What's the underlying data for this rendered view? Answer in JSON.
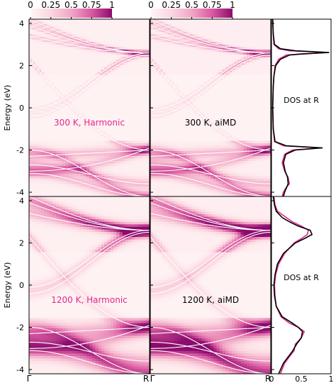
{
  "chart_data": {
    "type": "heatmap",
    "colormap": {
      "ticks": [
        "0",
        "0.25",
        "0.5",
        "0.75",
        "1"
      ],
      "colors": [
        "#fff5f5",
        "#fbd6e0",
        "#f2a6c6",
        "#d95aa0",
        "#8c0b6e"
      ],
      "range": [
        0,
        1
      ]
    },
    "energy_axis": {
      "label": "Energy (eV)",
      "range": [
        -4.2,
        4.2
      ],
      "ticks": [
        -4,
        -2,
        0,
        2,
        4
      ]
    },
    "k_path_labels": [
      "Γ",
      "R"
    ],
    "dos_axis": {
      "range": [
        0,
        1
      ],
      "ticks": [
        "0",
        "0.5",
        "1"
      ]
    },
    "bands": [
      {
        "gamma": 2.3,
        "r": -2.0,
        "shape": "dip"
      },
      {
        "gamma": 3.4,
        "r": 2.6,
        "shape": "dip"
      },
      {
        "gamma": 3.9,
        "r": 2.6,
        "shape": "dip"
      },
      {
        "gamma": 4.2,
        "r": 2.6,
        "shape": "dip"
      },
      {
        "gamma": -0.4,
        "r": 2.5,
        "shape": "cos"
      },
      {
        "gamma": -0.1,
        "r": 2.6,
        "shape": "cos"
      },
      {
        "gamma": -2.3,
        "r": -2.0,
        "shape": "flat"
      },
      {
        "gamma": -2.7,
        "r": -3.6,
        "shape": "cos"
      },
      {
        "gamma": -3.0,
        "r": -1.9,
        "shape": "sag"
      },
      {
        "gamma": -3.1,
        "r": -4.2,
        "shape": "cos"
      },
      {
        "gamma": -2.0,
        "r": -4.2,
        "shape": "cos"
      }
    ],
    "panels": [
      {
        "label": "300 K, Harmonic",
        "label_color": "#e0288a",
        "broadening": 0.55,
        "model": "harmonic"
      },
      {
        "label": "300 K, aiMD",
        "label_color": "#000000",
        "broadening": 0.6,
        "model": "aimd"
      },
      {
        "label": "1200 K, Harmonic",
        "label_color": "#e0288a",
        "broadening": 1.6,
        "model": "harmonic"
      },
      {
        "label": "1200 K, aiMD",
        "label_color": "#000000",
        "broadening": 1.7,
        "model": "aimd"
      }
    ],
    "dos_panels": [
      {
        "label": "DOS at R",
        "series": [
          {
            "color": "#e0288a",
            "points": [
              [
                4.2,
                0.02
              ],
              [
                3.5,
                0.03
              ],
              [
                3.0,
                0.04
              ],
              [
                2.8,
                0.12
              ],
              [
                2.7,
                0.3
              ],
              [
                2.62,
                0.95
              ],
              [
                2.55,
                0.55
              ],
              [
                2.5,
                0.25
              ],
              [
                2.3,
                0.12
              ],
              [
                2.0,
                0.06
              ],
              [
                1.5,
                0.04
              ],
              [
                1.0,
                0.03
              ],
              [
                0,
                0.02
              ],
              [
                -1.0,
                0.03
              ],
              [
                -1.6,
                0.05
              ],
              [
                -1.8,
                0.2
              ],
              [
                -1.9,
                0.82
              ],
              [
                -2.0,
                0.35
              ],
              [
                -2.2,
                0.22
              ],
              [
                -2.6,
                0.18
              ],
              [
                -3.0,
                0.22
              ],
              [
                -3.3,
                0.28
              ],
              [
                -3.6,
                0.3
              ],
              [
                -3.8,
                0.24
              ],
              [
                -4.0,
                0.2
              ],
              [
                -4.2,
                0.18
              ]
            ]
          },
          {
            "color": "#000000",
            "points": [
              [
                4.2,
                0.02
              ],
              [
                3.5,
                0.03
              ],
              [
                3.0,
                0.05
              ],
              [
                2.8,
                0.15
              ],
              [
                2.7,
                0.4
              ],
              [
                2.62,
                0.97
              ],
              [
                2.55,
                0.5
              ],
              [
                2.5,
                0.3
              ],
              [
                2.3,
                0.15
              ],
              [
                2.0,
                0.07
              ],
              [
                1.5,
                0.04
              ],
              [
                1.0,
                0.03
              ],
              [
                0,
                0.02
              ],
              [
                -1.0,
                0.03
              ],
              [
                -1.6,
                0.06
              ],
              [
                -1.8,
                0.25
              ],
              [
                -1.9,
                0.86
              ],
              [
                -2.0,
                0.4
              ],
              [
                -2.2,
                0.24
              ],
              [
                -2.6,
                0.2
              ],
              [
                -3.0,
                0.23
              ],
              [
                -3.3,
                0.27
              ],
              [
                -3.6,
                0.28
              ],
              [
                -3.8,
                0.25
              ],
              [
                -4.0,
                0.22
              ],
              [
                -4.2,
                0.2
              ]
            ]
          }
        ]
      },
      {
        "label": "DOS at R",
        "series": [
          {
            "color": "#e0288a",
            "points": [
              [
                4.2,
                0.04
              ],
              [
                3.8,
                0.06
              ],
              [
                3.5,
                0.1
              ],
              [
                3.2,
                0.25
              ],
              [
                3.0,
                0.35
              ],
              [
                2.8,
                0.5
              ],
              [
                2.6,
                0.62
              ],
              [
                2.4,
                0.6
              ],
              [
                2.2,
                0.5
              ],
              [
                2.0,
                0.38
              ],
              [
                1.5,
                0.22
              ],
              [
                1.0,
                0.12
              ],
              [
                0.5,
                0.07
              ],
              [
                0,
                0.05
              ],
              [
                -0.5,
                0.06
              ],
              [
                -1.0,
                0.08
              ],
              [
                -1.5,
                0.16
              ],
              [
                -1.8,
                0.3
              ],
              [
                -2.0,
                0.45
              ],
              [
                -2.2,
                0.55
              ],
              [
                -2.5,
                0.5
              ],
              [
                -2.8,
                0.4
              ],
              [
                -3.1,
                0.38
              ],
              [
                -3.4,
                0.3
              ],
              [
                -3.7,
                0.22
              ],
              [
                -4.2,
                0.15
              ]
            ]
          },
          {
            "color": "#000000",
            "points": [
              [
                4.2,
                0.03
              ],
              [
                3.8,
                0.05
              ],
              [
                3.5,
                0.08
              ],
              [
                3.2,
                0.18
              ],
              [
                3.0,
                0.3
              ],
              [
                2.8,
                0.45
              ],
              [
                2.6,
                0.65
              ],
              [
                2.4,
                0.68
              ],
              [
                2.2,
                0.55
              ],
              [
                2.0,
                0.4
              ],
              [
                1.5,
                0.2
              ],
              [
                1.0,
                0.1
              ],
              [
                0.5,
                0.06
              ],
              [
                0,
                0.04
              ],
              [
                -0.5,
                0.05
              ],
              [
                -1.0,
                0.08
              ],
              [
                -1.5,
                0.18
              ],
              [
                -1.8,
                0.35
              ],
              [
                -2.0,
                0.45
              ],
              [
                -2.2,
                0.52
              ],
              [
                -2.5,
                0.5
              ],
              [
                -2.8,
                0.42
              ],
              [
                -3.1,
                0.36
              ],
              [
                -3.4,
                0.28
              ],
              [
                -3.7,
                0.2
              ],
              [
                -4.2,
                0.12
              ]
            ]
          }
        ]
      }
    ]
  }
}
